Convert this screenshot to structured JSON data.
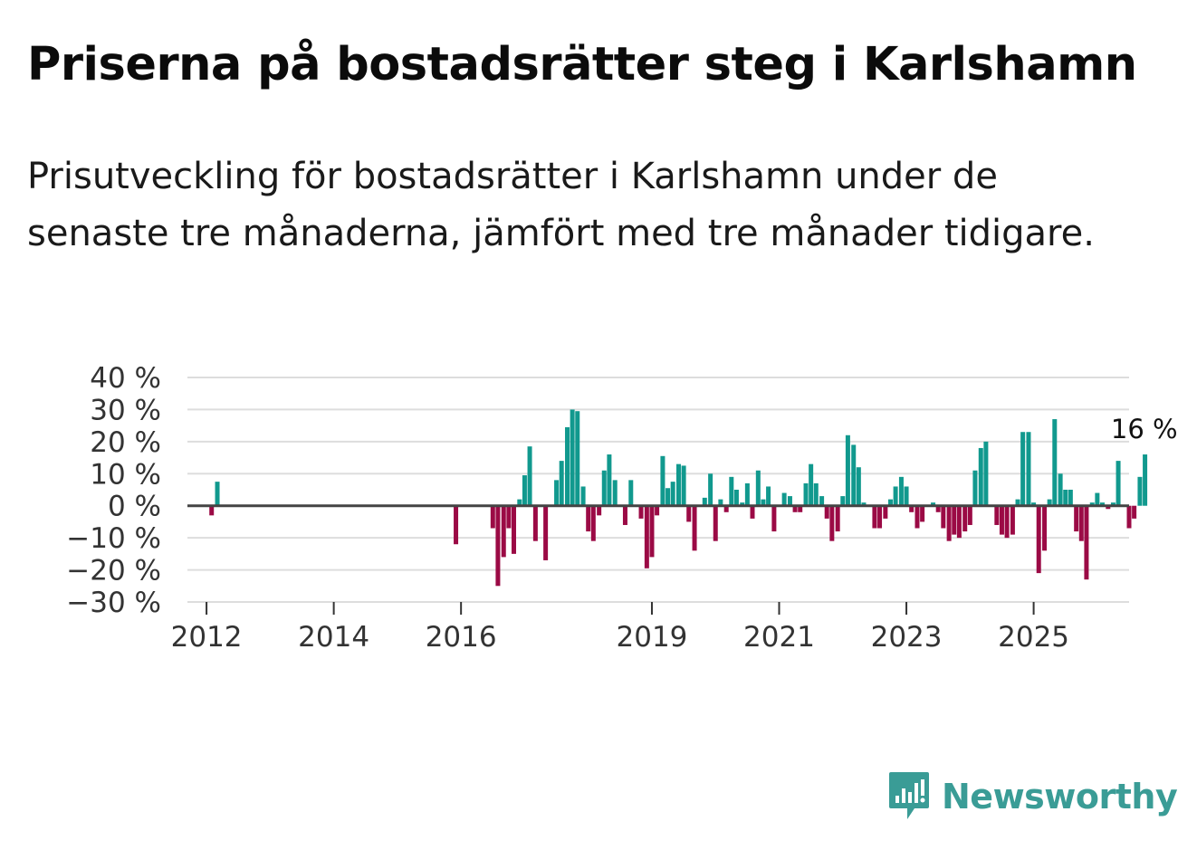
{
  "title": "Priserna på bostadsrätter steg i Karlshamn",
  "subtitle": "Prisutveckling för bostadsrätter i Karlshamn under de senaste tre månaderna, jämfört med tre månader tidigare.",
  "brand": {
    "name": "Newsworthy",
    "color": "#3a9c96"
  },
  "colors": {
    "positive": "#11998e",
    "negative": "#9b0a45",
    "grid": "#dddddd",
    "zero": "#444444"
  },
  "chart_data": {
    "type": "bar",
    "title": "Priserna på bostadsrätter steg i Karlshamn",
    "xlabel": "",
    "ylabel": "",
    "ylim": [
      -30,
      40
    ],
    "y_ticks": [
      40,
      30,
      20,
      10,
      0,
      -10,
      -20,
      -30
    ],
    "y_tick_labels": [
      "40 %",
      "30 %",
      "20 %",
      "10 %",
      "0 %",
      "−10 %",
      "−20 %",
      "−30 %"
    ],
    "x_range": [
      2011.7,
      2026.5
    ],
    "x_ticks": [
      {
        "x": 2012,
        "label": "2012"
      },
      {
        "x": 2014,
        "label": "2014"
      },
      {
        "x": 2016,
        "label": "2016"
      },
      {
        "x": 2019,
        "label": "2019"
      },
      {
        "x": 2021,
        "label": "2021"
      },
      {
        "x": 2023,
        "label": "2023"
      },
      {
        "x": 2025,
        "label": "2025"
      }
    ],
    "last_value_label": "16 %",
    "series": [
      {
        "name": "Prisutveckling (%)",
        "points": [
          [
            2012.08,
            -3
          ],
          [
            2012.17,
            7.5
          ],
          [
            2015.92,
            -12
          ],
          [
            2016.5,
            -7
          ],
          [
            2016.58,
            -25
          ],
          [
            2016.67,
            -16
          ],
          [
            2016.75,
            -7
          ],
          [
            2016.83,
            -15
          ],
          [
            2016.92,
            2
          ],
          [
            2017.0,
            9.5
          ],
          [
            2017.08,
            18.5
          ],
          [
            2017.17,
            -11
          ],
          [
            2017.33,
            -17
          ],
          [
            2017.5,
            8
          ],
          [
            2017.58,
            14
          ],
          [
            2017.67,
            24.5
          ],
          [
            2017.75,
            30
          ],
          [
            2017.83,
            29.5
          ],
          [
            2017.92,
            6
          ],
          [
            2018.0,
            -8
          ],
          [
            2018.08,
            -11
          ],
          [
            2018.17,
            -3
          ],
          [
            2018.25,
            11
          ],
          [
            2018.33,
            16
          ],
          [
            2018.42,
            8
          ],
          [
            2018.58,
            -6
          ],
          [
            2018.67,
            8
          ],
          [
            2018.83,
            -4
          ],
          [
            2018.92,
            -19.5
          ],
          [
            2019.0,
            -16
          ],
          [
            2019.08,
            -3
          ],
          [
            2019.17,
            15.5
          ],
          [
            2019.25,
            5.5
          ],
          [
            2019.33,
            7.5
          ],
          [
            2019.42,
            13
          ],
          [
            2019.5,
            12.5
          ],
          [
            2019.58,
            -5
          ],
          [
            2019.67,
            -14
          ],
          [
            2019.83,
            2.5
          ],
          [
            2019.92,
            10
          ],
          [
            2020.0,
            -11
          ],
          [
            2020.08,
            2
          ],
          [
            2020.17,
            -2
          ],
          [
            2020.25,
            9
          ],
          [
            2020.33,
            5
          ],
          [
            2020.42,
            1
          ],
          [
            2020.5,
            7
          ],
          [
            2020.58,
            -4
          ],
          [
            2020.67,
            11
          ],
          [
            2020.75,
            2
          ],
          [
            2020.83,
            6
          ],
          [
            2020.92,
            -8
          ],
          [
            2021.08,
            4
          ],
          [
            2021.17,
            3
          ],
          [
            2021.25,
            -2
          ],
          [
            2021.33,
            -2
          ],
          [
            2021.42,
            7
          ],
          [
            2021.5,
            13
          ],
          [
            2021.58,
            7
          ],
          [
            2021.67,
            3
          ],
          [
            2021.75,
            -4
          ],
          [
            2021.83,
            -11
          ],
          [
            2021.92,
            -8
          ],
          [
            2022.0,
            3
          ],
          [
            2022.08,
            22
          ],
          [
            2022.17,
            19
          ],
          [
            2022.25,
            12
          ],
          [
            2022.33,
            1
          ],
          [
            2022.5,
            -7
          ],
          [
            2022.58,
            -7
          ],
          [
            2022.67,
            -4
          ],
          [
            2022.75,
            2
          ],
          [
            2022.83,
            6
          ],
          [
            2022.92,
            9
          ],
          [
            2023.0,
            6
          ],
          [
            2023.08,
            -2
          ],
          [
            2023.17,
            -7
          ],
          [
            2023.25,
            -5
          ],
          [
            2023.42,
            1
          ],
          [
            2023.5,
            -2
          ],
          [
            2023.58,
            -7
          ],
          [
            2023.67,
            -11
          ],
          [
            2023.75,
            -9
          ],
          [
            2023.83,
            -10
          ],
          [
            2023.92,
            -8
          ],
          [
            2024.0,
            -6
          ],
          [
            2024.08,
            11
          ],
          [
            2024.17,
            18
          ],
          [
            2024.25,
            20
          ],
          [
            2024.42,
            -6
          ],
          [
            2024.5,
            -9
          ],
          [
            2024.58,
            -10
          ],
          [
            2024.67,
            -9
          ],
          [
            2024.75,
            2
          ],
          [
            2024.83,
            23
          ],
          [
            2024.92,
            23
          ],
          [
            2025.0,
            1
          ],
          [
            2025.08,
            -21
          ],
          [
            2025.17,
            -14
          ],
          [
            2025.25,
            2
          ],
          [
            2025.33,
            27
          ],
          [
            2025.42,
            10
          ],
          [
            2025.5,
            5
          ],
          [
            2025.58,
            5
          ],
          [
            2025.67,
            -8
          ],
          [
            2025.75,
            -11
          ],
          [
            2025.83,
            -23
          ],
          [
            2025.92,
            1
          ],
          [
            2026.0,
            4
          ],
          [
            2026.08,
            1
          ],
          [
            2026.17,
            -1
          ],
          [
            2026.25,
            1
          ],
          [
            2026.33,
            14
          ],
          [
            2026.42,
            0
          ],
          [
            2026.5,
            -7
          ],
          [
            2026.58,
            -4
          ],
          [
            2026.67,
            9
          ],
          [
            2026.75,
            16
          ]
        ]
      }
    ]
  }
}
